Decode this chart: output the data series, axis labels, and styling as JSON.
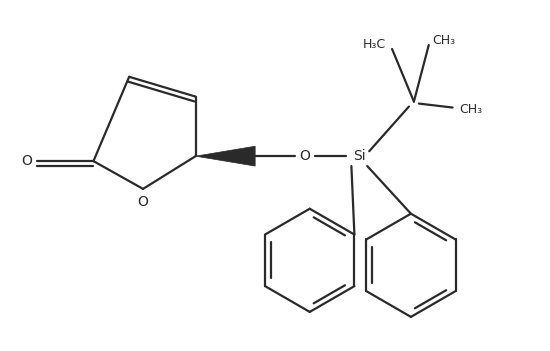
{
  "bg_color": "#ffffff",
  "line_color": "#2a2a2a",
  "line_width": 1.6,
  "figsize": [
    5.5,
    3.51
  ],
  "dpi": 100,
  "xlim": [
    0,
    5.5
  ],
  "ylim": [
    0,
    3.51
  ]
}
